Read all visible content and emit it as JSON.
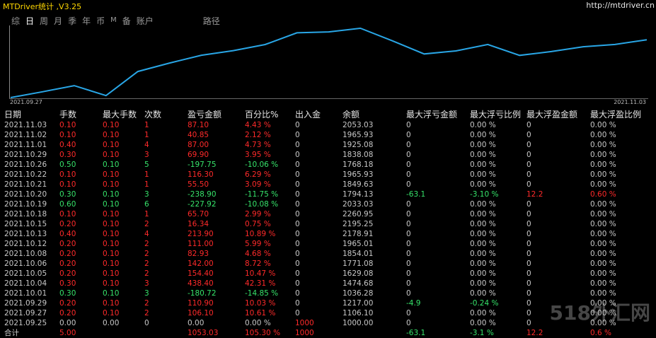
{
  "window": {
    "title": "MTDriver统计 ,V3.25",
    "url": "http://mtdriver.cn"
  },
  "tabs": [
    "综",
    "日",
    "周",
    "月",
    "季",
    "年",
    "币",
    "M",
    "备",
    "账户",
    "路径"
  ],
  "chart_dates": {
    "start": "2021.09.27",
    "end": "2021.11.03"
  },
  "chart_data": {
    "type": "line",
    "color": "#29a6e6",
    "x": [
      "2021.09.25",
      "2021.09.27",
      "2021.09.29",
      "2021.10.01",
      "2021.10.04",
      "2021.10.05",
      "2021.10.06",
      "2021.10.08",
      "2021.10.12",
      "2021.10.13",
      "2021.10.15",
      "2021.10.18",
      "2021.10.19",
      "2021.10.20",
      "2021.10.21",
      "2021.10.22",
      "2021.10.26",
      "2021.10.29",
      "2021.11.01",
      "2021.11.02",
      "2021.11.03"
    ],
    "y": [
      1000.0,
      1106.1,
      1217.0,
      1036.28,
      1474.68,
      1629.08,
      1771.08,
      1854.01,
      1965.01,
      2178.91,
      2195.25,
      2260.95,
      2033.03,
      1794.13,
      1849.63,
      1965.93,
      1768.18,
      1838.08,
      1925.08,
      1965.93,
      2053.03
    ]
  },
  "table": {
    "headers": [
      "日期",
      "手数",
      "最大手数",
      "次数",
      "盈亏金额",
      "百分比%",
      "出入金",
      "余额",
      "最大浮亏金额",
      "最大浮亏比例",
      "最大浮盈金额",
      "最大浮盈比例"
    ],
    "rows": [
      {
        "c": [
          "2021.11.03",
          "0.10",
          "0.10",
          "1",
          "87.10",
          "4.43 %",
          "0",
          "2053.03",
          "0",
          "0.00 %",
          "0",
          "0.00 %"
        ],
        "k": "r"
      },
      {
        "c": [
          "2021.11.02",
          "0.10",
          "0.10",
          "1",
          "40.85",
          "2.12 %",
          "0",
          "1965.93",
          "0",
          "0.00 %",
          "0",
          "0.00 %"
        ],
        "k": "r"
      },
      {
        "c": [
          "2021.11.01",
          "0.40",
          "0.10",
          "4",
          "87.00",
          "4.73 %",
          "0",
          "1925.08",
          "0",
          "0.00 %",
          "0",
          "0.00 %"
        ],
        "k": "r"
      },
      {
        "c": [
          "2021.10.29",
          "0.30",
          "0.10",
          "3",
          "69.90",
          "3.95 %",
          "0",
          "1838.08",
          "0",
          "0.00 %",
          "0",
          "0.00 %"
        ],
        "k": "r"
      },
      {
        "c": [
          "2021.10.26",
          "0.50",
          "0.10",
          "5",
          "-197.75",
          "-10.06 %",
          "0",
          "1768.18",
          "0",
          "0.00 %",
          "0",
          "0.00 %"
        ],
        "k": "g"
      },
      {
        "c": [
          "2021.10.22",
          "0.10",
          "0.10",
          "1",
          "116.30",
          "6.29 %",
          "0",
          "1965.93",
          "0",
          "0.00 %",
          "0",
          "0.00 %"
        ],
        "k": "r"
      },
      {
        "c": [
          "2021.10.21",
          "0.10",
          "0.10",
          "1",
          "55.50",
          "3.09 %",
          "0",
          "1849.63",
          "0",
          "0.00 %",
          "0",
          "0.00 %"
        ],
        "k": "r"
      },
      {
        "c": [
          "2021.10.20",
          "0.30",
          "0.10",
          "3",
          "-238.90",
          "-11.75 %",
          "0",
          "1794.13",
          "-63.1",
          "-3.10 %",
          "12.2",
          "0.60 %"
        ],
        "k": "g",
        "float": true
      },
      {
        "c": [
          "2021.10.19",
          "0.60",
          "0.10",
          "6",
          "-227.92",
          "-10.08 %",
          "0",
          "2033.03",
          "0",
          "0.00 %",
          "0",
          "0.00 %"
        ],
        "k": "g"
      },
      {
        "c": [
          "2021.10.18",
          "0.10",
          "0.10",
          "1",
          "65.70",
          "2.99 %",
          "0",
          "2260.95",
          "0",
          "0.00 %",
          "0",
          "0.00 %"
        ],
        "k": "r"
      },
      {
        "c": [
          "2021.10.15",
          "0.20",
          "0.10",
          "2",
          "16.34",
          "0.75 %",
          "0",
          "2195.25",
          "0",
          "0.00 %",
          "0",
          "0.00 %"
        ],
        "k": "r"
      },
      {
        "c": [
          "2021.10.13",
          "0.40",
          "0.10",
          "4",
          "213.90",
          "10.89 %",
          "0",
          "2178.91",
          "0",
          "0.00 %",
          "0",
          "0.00 %"
        ],
        "k": "r"
      },
      {
        "c": [
          "2021.10.12",
          "0.20",
          "0.10",
          "2",
          "111.00",
          "5.99 %",
          "0",
          "1965.01",
          "0",
          "0.00 %",
          "0",
          "0.00 %"
        ],
        "k": "r"
      },
      {
        "c": [
          "2021.10.08",
          "0.20",
          "0.10",
          "2",
          "82.93",
          "4.68 %",
          "0",
          "1854.01",
          "0",
          "0.00 %",
          "0",
          "0.00 %"
        ],
        "k": "r"
      },
      {
        "c": [
          "2021.10.06",
          "0.20",
          "0.10",
          "2",
          "142.00",
          "8.72 %",
          "0",
          "1771.08",
          "0",
          "0.00 %",
          "0",
          "0.00 %"
        ],
        "k": "r"
      },
      {
        "c": [
          "2021.10.05",
          "0.20",
          "0.10",
          "2",
          "154.40",
          "10.47 %",
          "0",
          "1629.08",
          "0",
          "0.00 %",
          "0",
          "0.00 %"
        ],
        "k": "r"
      },
      {
        "c": [
          "2021.10.04",
          "0.30",
          "0.10",
          "3",
          "438.40",
          "42.31 %",
          "0",
          "1474.68",
          "0",
          "0.00 %",
          "0",
          "0.00 %"
        ],
        "k": "r"
      },
      {
        "c": [
          "2021.10.01",
          "0.30",
          "0.10",
          "3",
          "-180.72",
          "-14.85 %",
          "0",
          "1036.28",
          "0",
          "0.00 %",
          "0",
          "0.00 %"
        ],
        "k": "g"
      },
      {
        "c": [
          "2021.09.29",
          "0.20",
          "0.10",
          "2",
          "110.90",
          "10.03 %",
          "0",
          "1217.00",
          "-4.9",
          "-0.24 %",
          "0",
          "0.00 %"
        ],
        "k": "r",
        "floatloss": true
      },
      {
        "c": [
          "2021.09.27",
          "0.20",
          "0.10",
          "2",
          "106.10",
          "10.61 %",
          "0",
          "1106.10",
          "0",
          "0.00 %",
          "0",
          "0.00 %"
        ],
        "k": "r"
      },
      {
        "c": [
          "2021.09.25",
          "0.00",
          "0.00",
          "0",
          "0.00",
          "0.00 %",
          "1000",
          "1000.00",
          "0",
          "0.00 %",
          "0",
          "0.00 %"
        ],
        "k": "n",
        "dep": true
      }
    ],
    "total": {
      "c": [
        "合计",
        "5.00",
        "",
        "",
        "1053.03",
        "105.30 %",
        "1000",
        "",
        "-63.1",
        "-3.1 %",
        "12.2",
        "0.6 %"
      ]
    }
  },
  "watermark": "518外汇网"
}
